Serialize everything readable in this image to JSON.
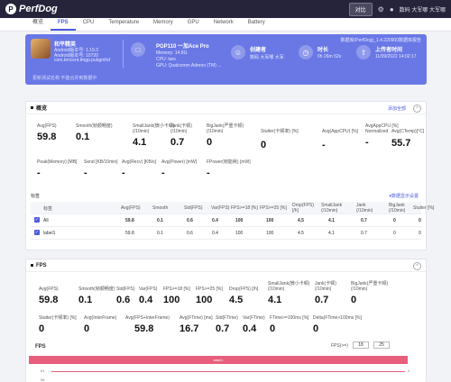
{
  "topbar": {
    "logo_mark": "P",
    "logo": "PerfDog",
    "action_button": "对比",
    "user": "数码 大军哪 大军哪"
  },
  "tabs": [
    {
      "label": "概览"
    },
    {
      "label": "FPS"
    },
    {
      "label": "CPU"
    },
    {
      "label": "Temperature"
    },
    {
      "label": "Memory"
    },
    {
      "label": "GPU"
    },
    {
      "label": "Network"
    },
    {
      "label": "Battery"
    }
  ],
  "hero": {
    "app_name": "和平精英",
    "app_lines": [
      "Android版本号: 1.19.3",
      "Android版本号: 10720",
      "com.tencent.tmgp.pubgmhd"
    ],
    "links": "更新测试名称  不能合并到数据中",
    "device_title": "PGP110 一加Ace Pro",
    "device_lines": [
      "Memory: 14.8G",
      "CPU: taro",
      "GPU: Qualcomm Adreno (TM) ..."
    ],
    "creator_title": "创建者",
    "creator_sub": "数码 大军哪 大军",
    "duration_title": "时长",
    "duration_sub": "0h 26m 52s",
    "upload_title": "上传者时间",
    "upload_sub": "11/09/2022 14:02:17",
    "corner": "数据库(PerfDog)_1.4.220900数据库报告"
  },
  "overview": {
    "title": "概览",
    "link": "添加全部",
    "row1": [
      {
        "label": "Avg(FPS)",
        "value": "59.8"
      },
      {
        "label": "Smooth(帧顺畅度)",
        "value": "0.1"
      },
      {
        "label": "SmallJank(微小卡顿)\n(/10min)",
        "value": "4.1"
      },
      {
        "label": "Jank(卡顿)\n(/10min)",
        "value": "0.7"
      },
      {
        "label": "BigJank(严重卡顿)\n(/10min)",
        "value": "0"
      },
      {
        "label": "Stutter(卡顿率) [%]",
        "value": "0"
      },
      {
        "label": "Avg(AppCPU) [%]",
        "value": "-"
      },
      {
        "label": "AvgAppCPU [%]\nNormalized",
        "value": "-"
      },
      {
        "label": "Avg(CTemp)[°C]",
        "value": "55.7"
      }
    ],
    "row2": [
      {
        "label": "Peak(Memory) [MB]",
        "value": "-"
      },
      {
        "label": "Send [KB/10min]",
        "value": "-"
      },
      {
        "label": "Avg(Recv) [KB/s]",
        "value": "-"
      },
      {
        "label": "Avg(Power) [mW]",
        "value": "-"
      },
      {
        "label": "FPower(帧能耗) [mW]",
        "value": "-"
      }
    ]
  },
  "label_table": {
    "title": "标签",
    "link": "▾数据显示设置",
    "headers": [
      "标签",
      "Avg(FPS)",
      "Smooth",
      "Std(FPS)",
      "Var(FPS)",
      "FPS>=18 [%]",
      "FPS>=25 [%]",
      "Drop(FPS)\n[/h]",
      "SmallJank\n(/10min)",
      "Jank\n(/10min)",
      "BigJank\n(/10min)",
      "Stutter [%]"
    ],
    "rows": [
      {
        "name": "All",
        "cells": [
          "59.8",
          "0.1",
          "0.6",
          "0.4",
          "100",
          "100",
          "4.5",
          "4.1",
          "0.7",
          "0",
          "0"
        ]
      },
      {
        "name": "label1",
        "cells": [
          "59.8",
          "0.1",
          "0.6",
          "0.4",
          "100",
          "100",
          "4.5",
          "4.1",
          "0.7",
          "0",
          "0"
        ]
      }
    ]
  },
  "fps_panel": {
    "title": "FPS",
    "row1": [
      {
        "label": "Avg(FPS)",
        "value": "59.8"
      },
      {
        "label": "Smooth(帧顺畅度)",
        "value": "0.1"
      },
      {
        "label": "Std(FPS)",
        "value": "0.6"
      },
      {
        "label": "Var(FPS)",
        "value": "0.4"
      },
      {
        "label": "FPS>=18 [%]",
        "value": "100"
      },
      {
        "label": "FPS>=25 [%]",
        "value": "100"
      },
      {
        "label": "Drop(FPS) [/h]",
        "value": "4.5"
      },
      {
        "label": "SmallJank(微小卡顿)\n(/10min)",
        "value": "4.1"
      },
      {
        "label": "Jank(卡顿)\n(/10min)",
        "value": "0.7"
      },
      {
        "label": "BigJank(严重卡顿)\n(/10min)",
        "value": "0"
      }
    ],
    "row2": [
      {
        "label": "Stutter(卡顿率) [%]",
        "value": "0"
      },
      {
        "label": "Avg(InterFrame)",
        "value": "0"
      },
      {
        "label": "Avg(FPS+InterFrame)",
        "value": "59.8"
      },
      {
        "label": "Avg(FTime) [ms]",
        "value": "16.7"
      },
      {
        "label": "Std(FTime)",
        "value": "0.7"
      },
      {
        "label": "Var(FTime)",
        "value": "0.4"
      },
      {
        "label": "FTime>=100ms [%]",
        "value": "0"
      },
      {
        "label": "Delta(FTime>100ms [%]",
        "value": "0"
      }
    ],
    "chart_title": "FPS",
    "fps_filter_label": "FPS(>=)",
    "fps_filter_a": "18",
    "fps_filter_b": "25",
    "bar_label": "label1",
    "y_ticks": [
      "61",
      "58"
    ],
    "right_tick": "2"
  },
  "colors": {
    "accent": "#4c5bdc",
    "hero": "#6a78e6",
    "label_bar": "#e85e7d"
  }
}
